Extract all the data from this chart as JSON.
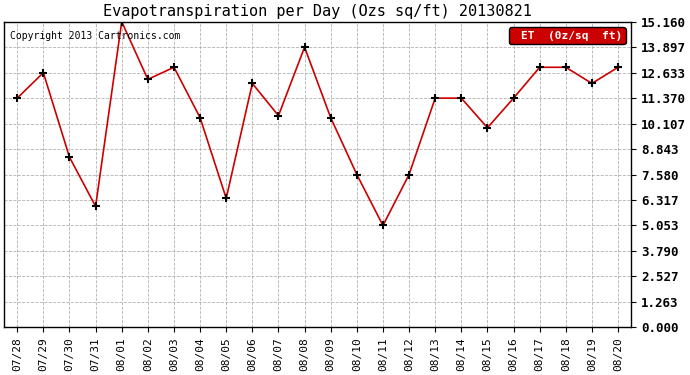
{
  "title": "Evapotranspiration per Day (Ozs sq/ft) 20130821",
  "copyright": "Copyright 2013 Cartronics.com",
  "legend_label": "ET  (0z/sq  ft)",
  "x_labels": [
    "07/28",
    "07/29",
    "07/30",
    "07/31",
    "08/01",
    "08/02",
    "08/03",
    "08/04",
    "08/05",
    "08/06",
    "08/07",
    "08/08",
    "08/09",
    "08/10",
    "08/11",
    "08/12",
    "08/13",
    "08/14",
    "08/15",
    "08/16",
    "08/17",
    "08/18",
    "08/19",
    "08/20"
  ],
  "y_values": [
    11.37,
    12.633,
    8.443,
    6.0,
    15.16,
    12.3,
    12.9,
    10.4,
    6.4,
    12.1,
    10.5,
    13.897,
    10.4,
    7.58,
    5.053,
    7.58,
    11.37,
    11.37,
    9.9,
    11.37,
    12.9,
    12.9,
    12.1,
    12.9
  ],
  "y_ticks": [
    0.0,
    1.263,
    2.527,
    3.79,
    5.053,
    6.317,
    7.58,
    8.843,
    10.107,
    11.37,
    12.633,
    13.897,
    15.16
  ],
  "line_color": "#cc0000",
  "marker": "+",
  "marker_color": "#000000",
  "bg_color": "#ffffff",
  "grid_color": "#aaaaaa",
  "legend_bg": "#cc0000",
  "legend_text_color": "#ffffff",
  "title_fontsize": 11,
  "copyright_fontsize": 7,
  "tick_fontsize": 8,
  "ytick_fontsize": 9,
  "ylim": [
    0.0,
    15.16
  ]
}
